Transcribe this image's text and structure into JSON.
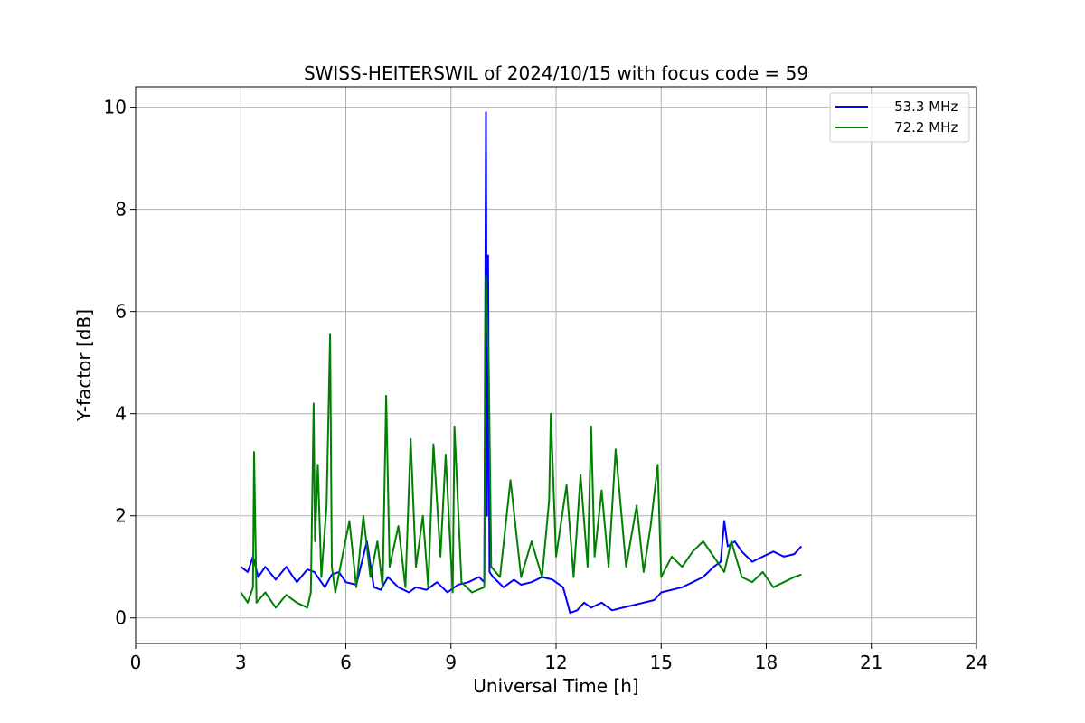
{
  "chart_data": {
    "type": "line",
    "title": "SWISS-HEITERSWIL of 2024/10/15 with focus code = 59",
    "xlabel": "Universal Time [h]",
    "ylabel": "Y-factor [dB]",
    "xlim": [
      0,
      24
    ],
    "ylim": [
      -0.5,
      10.4
    ],
    "xticks": [
      0,
      3,
      6,
      9,
      12,
      15,
      18,
      21,
      24
    ],
    "yticks": [
      0,
      2,
      4,
      6,
      8,
      10
    ],
    "grid": true,
    "legend_position": "top-right",
    "series": [
      {
        "name": "    53.3 MHz",
        "color": "#0000ff",
        "x": [
          3.0,
          3.2,
          3.35,
          3.5,
          3.7,
          4.0,
          4.3,
          4.6,
          4.9,
          5.1,
          5.2,
          5.4,
          5.6,
          5.8,
          6.0,
          6.3,
          6.6,
          6.8,
          7.0,
          7.2,
          7.5,
          7.8,
          8.0,
          8.3,
          8.6,
          8.9,
          9.2,
          9.5,
          9.8,
          9.95,
          10.0,
          10.03,
          10.06,
          10.1,
          10.2,
          10.5,
          10.8,
          11.0,
          11.3,
          11.6,
          11.9,
          12.2,
          12.4,
          12.6,
          12.8,
          13.0,
          13.3,
          13.6,
          13.9,
          14.2,
          14.5,
          14.8,
          15.0,
          15.3,
          15.6,
          15.9,
          16.2,
          16.5,
          16.7,
          16.8,
          16.9,
          17.1,
          17.3,
          17.6,
          17.9,
          18.2,
          18.5,
          18.8,
          19.0
        ],
        "y": [
          1.0,
          0.9,
          1.2,
          0.8,
          1.0,
          0.75,
          1.0,
          0.7,
          0.95,
          0.9,
          0.8,
          0.6,
          0.85,
          0.9,
          0.7,
          0.65,
          1.5,
          0.6,
          0.55,
          0.8,
          0.6,
          0.5,
          0.6,
          0.55,
          0.7,
          0.5,
          0.65,
          0.7,
          0.8,
          0.7,
          9.9,
          2.0,
          7.1,
          0.9,
          0.8,
          0.6,
          0.75,
          0.65,
          0.7,
          0.8,
          0.75,
          0.6,
          0.1,
          0.15,
          0.3,
          0.2,
          0.3,
          0.15,
          0.2,
          0.25,
          0.3,
          0.35,
          0.5,
          0.55,
          0.6,
          0.7,
          0.8,
          1.0,
          1.1,
          1.9,
          1.4,
          1.5,
          1.3,
          1.1,
          1.2,
          1.3,
          1.2,
          1.25,
          1.4
        ]
      },
      {
        "name": "    72.2 MHz",
        "color": "#008000",
        "x": [
          3.0,
          3.2,
          3.35,
          3.38,
          3.45,
          3.7,
          4.0,
          4.3,
          4.6,
          4.9,
          5.0,
          5.08,
          5.12,
          5.2,
          5.3,
          5.45,
          5.55,
          5.6,
          5.7,
          5.9,
          6.1,
          6.3,
          6.5,
          6.7,
          6.9,
          7.05,
          7.15,
          7.25,
          7.5,
          7.7,
          7.85,
          8.0,
          8.2,
          8.35,
          8.5,
          8.7,
          8.85,
          9.05,
          9.1,
          9.3,
          9.6,
          9.95,
          10.0,
          10.08,
          10.15,
          10.4,
          10.7,
          11.0,
          11.3,
          11.6,
          11.8,
          11.85,
          12.0,
          12.3,
          12.5,
          12.7,
          12.9,
          13.0,
          13.1,
          13.3,
          13.5,
          13.7,
          14.0,
          14.3,
          14.5,
          14.7,
          14.9,
          15.0,
          15.3,
          15.6,
          15.9,
          16.2,
          16.5,
          16.8,
          17.0,
          17.3,
          17.6,
          17.9,
          18.2,
          18.5,
          18.8,
          19.0
        ],
        "y": [
          0.5,
          0.3,
          0.6,
          3.25,
          0.3,
          0.5,
          0.2,
          0.45,
          0.3,
          0.2,
          0.5,
          4.2,
          1.5,
          3.0,
          0.8,
          2.2,
          5.55,
          1.0,
          0.5,
          1.2,
          1.9,
          0.6,
          2.0,
          0.8,
          1.5,
          0.6,
          4.35,
          1.0,
          1.8,
          0.6,
          3.5,
          1.0,
          2.0,
          0.6,
          3.4,
          1.2,
          3.2,
          0.5,
          3.75,
          0.7,
          0.5,
          0.6,
          6.7,
          4.9,
          1.0,
          0.8,
          2.7,
          0.8,
          1.5,
          0.8,
          2.3,
          4.0,
          1.2,
          2.6,
          0.8,
          2.8,
          1.0,
          3.75,
          1.2,
          2.5,
          1.0,
          3.3,
          1.0,
          2.2,
          0.9,
          1.8,
          3.0,
          0.8,
          1.2,
          1.0,
          1.3,
          1.5,
          1.2,
          0.9,
          1.5,
          0.8,
          0.7,
          0.9,
          0.6,
          0.7,
          0.8,
          0.85
        ]
      }
    ]
  }
}
